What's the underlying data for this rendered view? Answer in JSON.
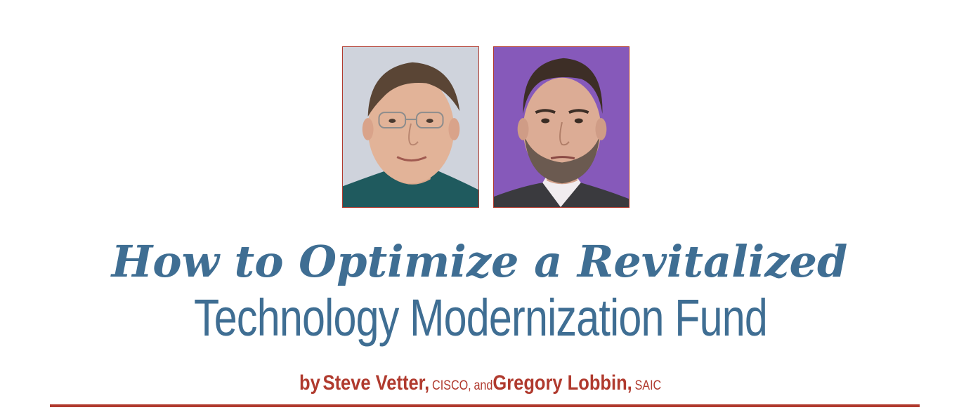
{
  "article": {
    "title_line_1": "How to Optimize a Revitalized",
    "title_line_2": "Technology Modernization Fund",
    "byline": {
      "prefix": "by",
      "author_1": "Steve Vetter,",
      "author_1_org": "CISCO,",
      "conjunction": "and",
      "author_2": "Gregory Lobbin,",
      "author_2_org": "SAIC"
    }
  },
  "colors": {
    "title": "#3f6e93",
    "accent": "#b03a2e"
  }
}
